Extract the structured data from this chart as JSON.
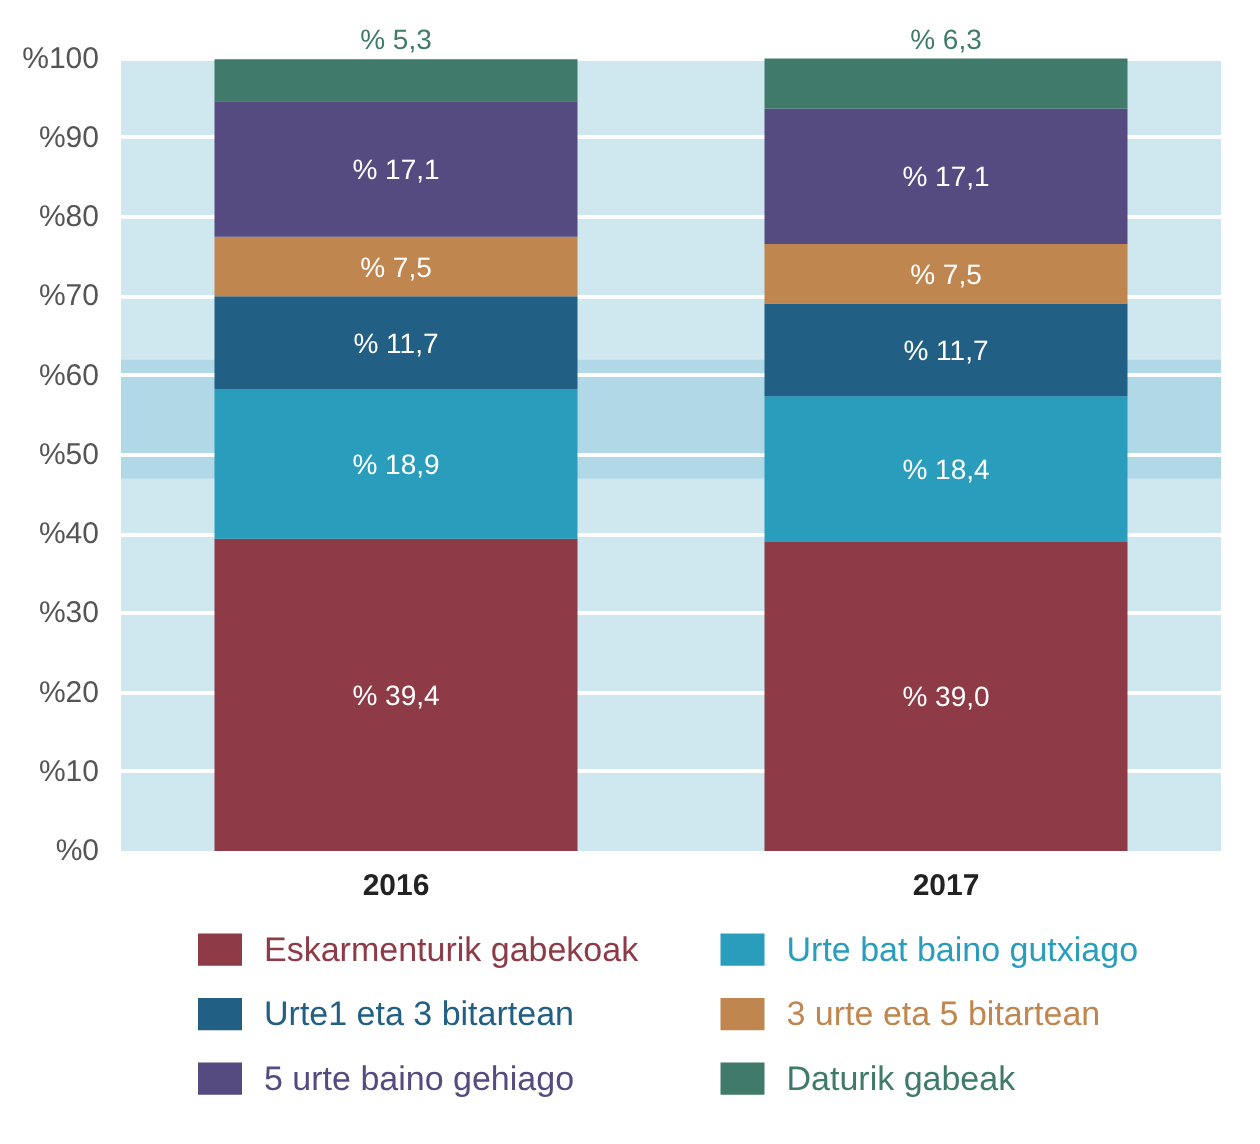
{
  "chart_data": {
    "type": "bar",
    "stacked": true,
    "categories": [
      "2016",
      "2017"
    ],
    "series": [
      {
        "name": "Eskarmenturik gabekoak",
        "color": "#8e3b47",
        "values": [
          39.4,
          39.0
        ],
        "value_labels": [
          "% 39,4",
          "% 39,0"
        ]
      },
      {
        "name": "Urte bat baino gutxiago",
        "color": "#2a9dbd",
        "values": [
          18.9,
          18.4
        ],
        "value_labels": [
          "% 18,9",
          "% 18,4"
        ]
      },
      {
        "name": "Urte1 eta 3 bitartean",
        "color": "#215f85",
        "values": [
          11.7,
          11.7
        ],
        "value_labels": [
          "% 11,7",
          "% 11,7"
        ]
      },
      {
        "name": "3 urte eta 5 bitartean",
        "color": "#c0864f",
        "values": [
          7.5,
          7.5
        ],
        "value_labels": [
          "% 7,5",
          "% 7,5"
        ]
      },
      {
        "name": "5 urte baino gehiago",
        "color": "#564b80",
        "values": [
          17.1,
          17.1
        ],
        "value_labels": [
          "% 17,1",
          "% 17,1"
        ]
      },
      {
        "name": "Daturik gabeak",
        "color": "#3f7a6a",
        "values": [
          5.3,
          6.3
        ],
        "value_labels": [
          "% 5,3",
          "% 6,3"
        ]
      }
    ],
    "ylim": [
      0,
      100
    ],
    "yticks": [
      {
        "value": 0,
        "label": "%0"
      },
      {
        "value": 10,
        "label": "%10"
      },
      {
        "value": 20,
        "label": "%20"
      },
      {
        "value": 30,
        "label": "%30"
      },
      {
        "value": 40,
        "label": "%40"
      },
      {
        "value": 50,
        "label": "%50"
      },
      {
        "value": 60,
        "label": "%60"
      },
      {
        "value": 70,
        "label": "%70"
      },
      {
        "value": 80,
        "label": "%80"
      },
      {
        "value": 90,
        "label": "%90"
      },
      {
        "value": 100,
        "label": "%100"
      }
    ],
    "grid": "y",
    "legend": "bottom",
    "bands": [
      {
        "axis": "y",
        "from": 47,
        "to": 62,
        "color": "#a9d5e3"
      }
    ]
  }
}
